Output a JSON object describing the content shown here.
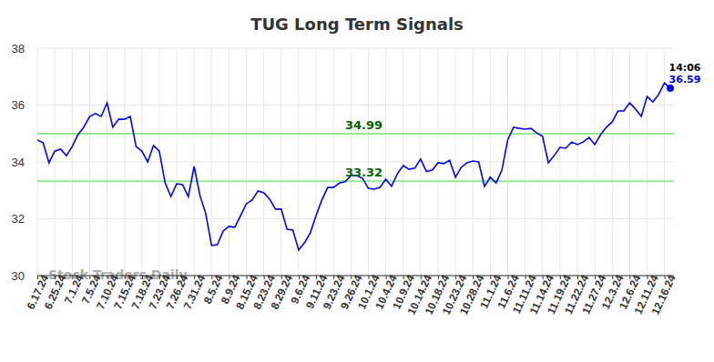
{
  "chart_data": {
    "type": "line",
    "title": "TUG Long Term Signals",
    "categories": [
      "6.17.24",
      null,
      null,
      "6.25.24",
      null,
      null,
      "7.1.24",
      null,
      null,
      "7.5.24",
      null,
      null,
      "7.10.24",
      null,
      null,
      "7.15.24",
      null,
      null,
      "7.18.24",
      null,
      null,
      "7.23.24",
      null,
      null,
      "7.26.24",
      null,
      null,
      "7.31.24",
      null,
      null,
      "8.5.24",
      null,
      null,
      "8.9.24",
      null,
      null,
      "8.15.24",
      null,
      null,
      "8.23.24",
      null,
      null,
      "8.29.24",
      null,
      null,
      "9.6.24",
      null,
      null,
      "9.11.24",
      null,
      null,
      "9.23.24",
      null,
      null,
      "9.26.24",
      null,
      null,
      "10.1.24",
      null,
      null,
      "10.4.24",
      null,
      null,
      "10.9.24",
      null,
      null,
      "10.14.24",
      null,
      null,
      "10.18.24",
      null,
      null,
      "10.23.24",
      null,
      null,
      "10.28.24",
      null,
      null,
      "11.1.24",
      null,
      null,
      "11.6.24",
      null,
      null,
      "11.11.24",
      null,
      null,
      "11.14.24",
      null,
      null,
      "11.19.24",
      null,
      null,
      "11.22.24",
      null,
      null,
      "11.27.24",
      null,
      null,
      "12.3.24",
      null,
      null,
      "12.6.24",
      null,
      null,
      "12.11.24",
      null,
      null,
      "12.16.24",
      null
    ],
    "values": [
      34.77,
      34.67,
      33.97,
      34.38,
      34.45,
      34.22,
      34.54,
      34.96,
      35.22,
      35.6,
      35.7,
      35.6,
      36.08,
      35.22,
      35.5,
      35.5,
      35.6,
      34.54,
      34.38,
      34.0,
      34.58,
      34.38,
      33.26,
      32.78,
      33.23,
      33.2,
      32.78,
      33.84,
      32.82,
      32.18,
      31.06,
      31.09,
      31.57,
      31.73,
      31.7,
      32.11,
      32.53,
      32.66,
      32.98,
      32.91,
      32.69,
      32.34,
      32.34,
      31.63,
      31.6,
      30.9,
      31.15,
      31.5,
      32.11,
      32.66,
      33.1,
      33.1,
      33.26,
      33.3,
      33.52,
      33.52,
      33.42,
      33.07,
      33.04,
      33.1,
      33.39,
      33.14,
      33.58,
      33.87,
      33.74,
      33.78,
      34.1,
      33.66,
      33.71,
      33.97,
      33.94,
      34.06,
      33.46,
      33.81,
      33.97,
      34.03,
      34.0,
      33.14,
      33.46,
      33.26,
      33.71,
      34.77,
      35.22,
      35.18,
      35.15,
      35.18,
      35.02,
      34.9,
      33.97,
      34.22,
      34.51,
      34.48,
      34.7,
      34.61,
      34.7,
      34.86,
      34.61,
      34.96,
      35.22,
      35.41,
      35.79,
      35.79,
      36.08,
      35.86,
      35.6,
      36.3,
      36.11,
      36.37,
      36.78,
      36.59
    ],
    "color": "#0000ff",
    "ylim": [
      30,
      38
    ],
    "yticks": [
      30,
      32,
      34,
      36,
      38
    ],
    "grid": true,
    "hlines": [
      {
        "value": 34.99,
        "color": "#90ee90"
      },
      {
        "value": 33.32,
        "color": "#90ee90"
      }
    ],
    "annotations": [
      "14:06"
    ],
    "watermark": "Stock Traders Daily"
  }
}
